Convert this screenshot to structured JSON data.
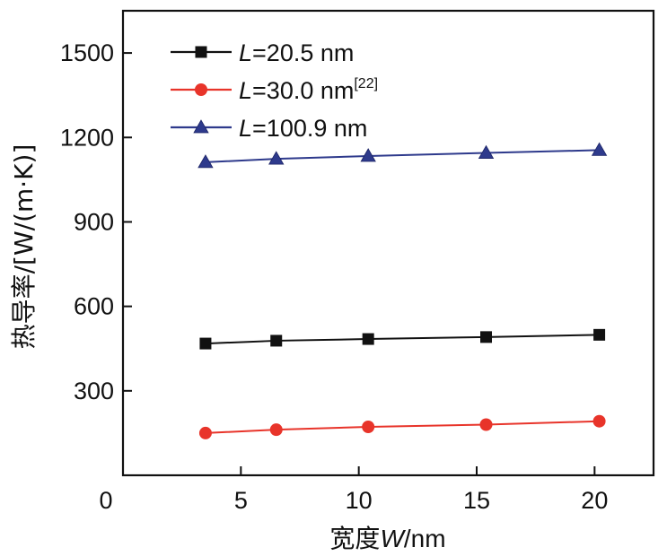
{
  "chart_data": {
    "type": "line",
    "xlabel_prefix": "宽度",
    "xlabel_var": "W",
    "xlabel_suffix": "/nm",
    "ylabel": "热导率/[W/(m·K)]",
    "xlim": [
      0,
      22.5
    ],
    "ylim": [
      0,
      1650
    ],
    "x_ticks": [
      0,
      5,
      10,
      15,
      20
    ],
    "y_ticks": [
      300,
      600,
      900,
      1200,
      1500
    ],
    "x_ticklabels": [
      "0",
      "5",
      "10",
      "15",
      "20"
    ],
    "y_ticklabels": [
      "300",
      "600",
      "900",
      "1200",
      "1500"
    ],
    "series": [
      {
        "name": "L=20.5 nm",
        "var": "L",
        "label": "=20.5 nm",
        "ref": "",
        "marker": "square",
        "color": "#111111",
        "x": [
          3.5,
          6.5,
          10.4,
          15.4,
          20.2
        ],
        "values": [
          468,
          478,
          484,
          491,
          499
        ]
      },
      {
        "name": "L=30.0 nm[22]",
        "var": "L",
        "label": "=30.0 nm",
        "ref": "[22]",
        "marker": "circle",
        "color": "#e8342a",
        "x": [
          3.5,
          6.5,
          10.4,
          15.4,
          20.2
        ],
        "values": [
          150,
          162,
          172,
          180,
          192
        ]
      },
      {
        "name": "L=100.9 nm",
        "var": "L",
        "label": "=100.9 nm",
        "ref": "",
        "marker": "triangle",
        "color": "#2e3a8c",
        "x": [
          3.5,
          6.5,
          10.4,
          15.4,
          20.2
        ],
        "values": [
          1112,
          1124,
          1134,
          1145,
          1155
        ]
      }
    ]
  }
}
